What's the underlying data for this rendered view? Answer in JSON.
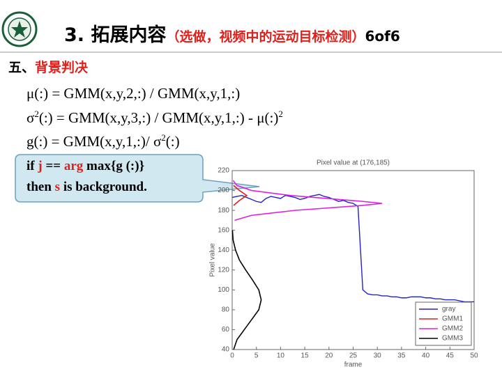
{
  "header": {
    "number": "3.",
    "title": "拓展内容",
    "subtitle": "（选做，视频中的运动目标检测）",
    "page": "6of6"
  },
  "section": {
    "number": "五、",
    "title": "背景判决"
  },
  "formulas": [
    [
      "μ(:) = GMM(x,y,2,:) / GMM(x,y,1,:)"
    ],
    [
      "σ",
      "2",
      "(:) = GMM(x,y,3,:) / GMM(x,y,1,:) - μ(:)",
      "2"
    ],
    [
      "g(:) = GMM(x,y,1,:)/ σ",
      "2",
      "(:)"
    ]
  ],
  "callout": [
    [
      "if ",
      "j",
      " == ",
      "arg",
      " max{g (:)}"
    ],
    [
      "then ",
      "s",
      " is background."
    ]
  ],
  "chart_data": {
    "type": "line",
    "title": "Pixel value at (176,185)",
    "x_label": "frame",
    "y_label": "Pixel value",
    "xlim": [
      0,
      50
    ],
    "xticks": [
      0,
      5,
      10,
      15,
      20,
      25,
      30,
      35,
      40,
      45,
      50
    ],
    "ylim": [
      40,
      220
    ],
    "yticks": [
      40,
      60,
      80,
      100,
      120,
      140,
      160,
      180,
      200,
      220
    ],
    "x": [
      0,
      1,
      2,
      3,
      4,
      5,
      6,
      7,
      8,
      9,
      10,
      11,
      12,
      13,
      14,
      15,
      16,
      17,
      18,
      19,
      20,
      21,
      22,
      23,
      24,
      25,
      26,
      27,
      28,
      29,
      30,
      31,
      32,
      33,
      34,
      35,
      36,
      37,
      38,
      39,
      40,
      41,
      42,
      43,
      44,
      45,
      46,
      47,
      48,
      49,
      50
    ],
    "legend": "lower right",
    "series": [
      {
        "name": "gray",
        "color": "#2222cc",
        "values": [
          193,
          194,
          195,
          193,
          191,
          189,
          188,
          192,
          194,
          193,
          192,
          195,
          194,
          193,
          191,
          192,
          194,
          195,
          196,
          194,
          193,
          191,
          189,
          190,
          188,
          187,
          184,
          100,
          96,
          95,
          95,
          94,
          94,
          93,
          93,
          92,
          92,
          93,
          93,
          93,
          92,
          92,
          91,
          91,
          90,
          90,
          90,
          89,
          88,
          88,
          88
        ]
      },
      {
        "name": "GMM1",
        "color": "#e02020",
        "values": [
          185,
          190,
          195,
          200,
          205
        ],
        "x": [
          0.3,
          1.5,
          3,
          1.5,
          0.3
        ]
      },
      {
        "name": "GMM2",
        "color": "#e020e0",
        "values": [
          170,
          175,
          180,
          185,
          187,
          189,
          195,
          200,
          205,
          210
        ],
        "x": [
          0.5,
          4,
          13,
          27,
          31,
          27,
          12,
          4,
          1,
          0.2
        ]
      },
      {
        "name": "GMM3",
        "color": "#000000",
        "values": [
          40,
          50,
          60,
          70,
          80,
          90,
          100,
          110,
          120,
          130,
          140,
          150,
          160
        ],
        "x": [
          0.3,
          1,
          2.5,
          4,
          5.5,
          6,
          5.5,
          4.2,
          2.8,
          1.5,
          0.7,
          0.2,
          0.05
        ]
      }
    ]
  }
}
